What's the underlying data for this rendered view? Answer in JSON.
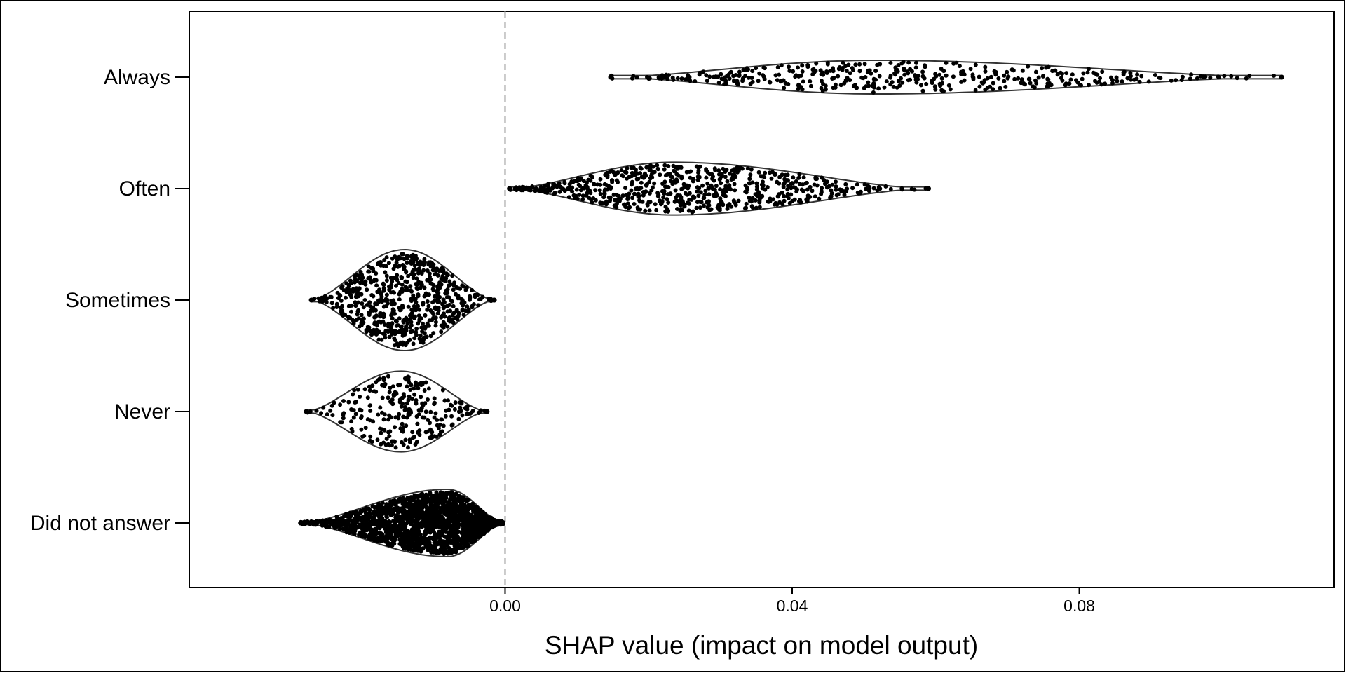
{
  "chart_data": {
    "type": "violin",
    "title": "",
    "xlabel": "SHAP value (impact on model output)",
    "ylabel": "",
    "xlim": [
      -0.044,
      0.1155
    ],
    "xticks": [
      0.0,
      0.04,
      0.08
    ],
    "xtick_labels": [
      "0.00",
      "0.04",
      "0.08"
    ],
    "zero_line": true,
    "categories": [
      "Always",
      "Often",
      "Sometimes",
      "Never",
      "Did not answer"
    ],
    "series": [
      {
        "category": "Always",
        "min": 0.0147,
        "max": 0.1082,
        "peak": 0.0515,
        "peak_halfwidth": 0.3,
        "n_points": 420
      },
      {
        "category": "Often",
        "min": 0.0006,
        "max": 0.059,
        "peak": 0.0235,
        "peak_halfwidth": 0.47,
        "n_points": 700
      },
      {
        "category": "Sometimes",
        "min": -0.027,
        "max": -0.0015,
        "peak": -0.014,
        "peak_halfwidth": 0.9,
        "n_points": 650
      },
      {
        "category": "Never",
        "min": -0.0277,
        "max": -0.0025,
        "peak": -0.0145,
        "peak_halfwidth": 0.72,
        "n_points": 260
      },
      {
        "category": "Did not answer",
        "min": -0.0285,
        "max": -0.0003,
        "peak": -0.008,
        "peak_halfwidth": 0.6,
        "n_points": 2000
      }
    ],
    "colors": {
      "points": "#000000",
      "outline": "#333333",
      "zero_line": "#9a9a9a"
    }
  }
}
